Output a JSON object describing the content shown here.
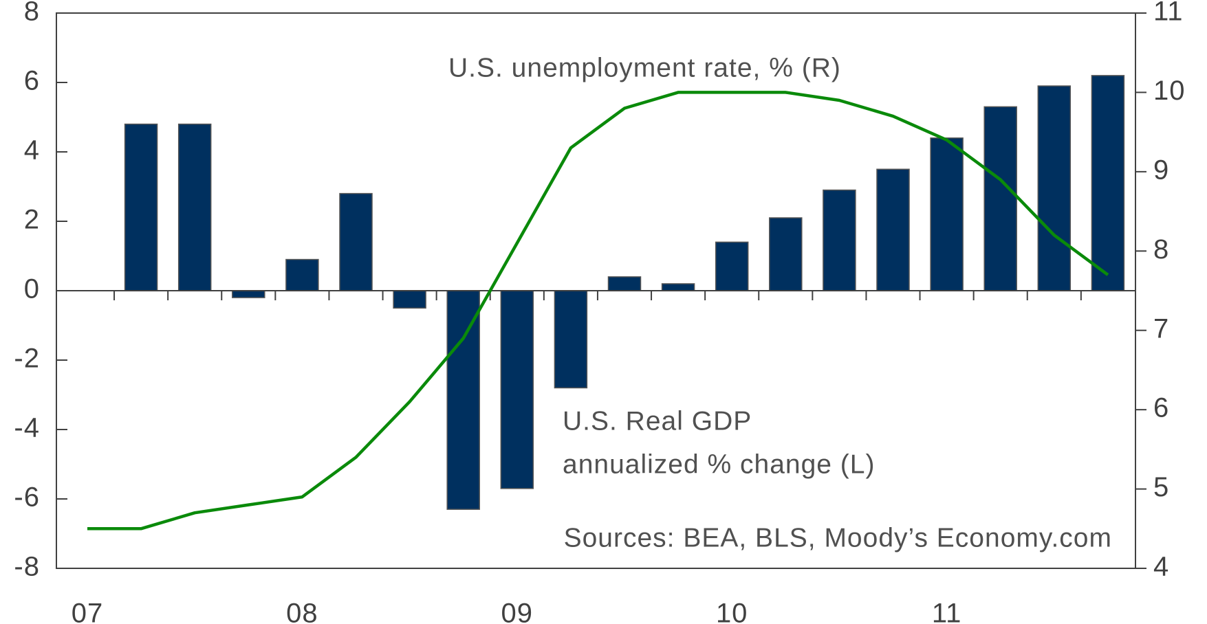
{
  "chart_data": {
    "type": "bar",
    "annotations": [
      "U.S. unemployment rate, % (R)",
      "U.S. Real GDP",
      "annualized % change (L)",
      "Sources: BEA, BLS, Moody’s Economy.com"
    ],
    "categories": [
      "07",
      null,
      null,
      null,
      "08",
      null,
      null,
      null,
      "09",
      null,
      null,
      null,
      "10",
      null,
      null,
      null,
      "11",
      null,
      null,
      null
    ],
    "series": [
      {
        "name": "U.S. Real GDP annualized % change (L)",
        "type": "bar",
        "color": "#00305f",
        "values": [
          null,
          4.8,
          4.8,
          -0.2,
          0.9,
          2.8,
          -0.5,
          -6.3,
          -5.7,
          -2.8,
          0.4,
          0.2,
          1.4,
          2.1,
          2.9,
          3.5,
          4.4,
          5.3,
          5.9,
          6.2
        ]
      },
      {
        "name": "U.S. unemployment rate, % (R)",
        "type": "line",
        "axis": "y2",
        "color": "#0a8a0a",
        "values": [
          4.5,
          4.5,
          4.7,
          4.8,
          4.9,
          5.4,
          6.1,
          6.9,
          8.1,
          9.3,
          9.8,
          10.0,
          10.0,
          10.0,
          9.9,
          9.7,
          9.4,
          8.9,
          8.2,
          7.7
        ]
      }
    ],
    "ylim": [
      -8,
      8
    ],
    "yticks": [
      -8,
      -6,
      -4,
      -2,
      0,
      2,
      4,
      6,
      8
    ],
    "y2lim": [
      4,
      11
    ],
    "y2ticks": [
      4,
      5,
      6,
      7,
      8,
      9,
      10,
      11
    ],
    "grid": false
  }
}
